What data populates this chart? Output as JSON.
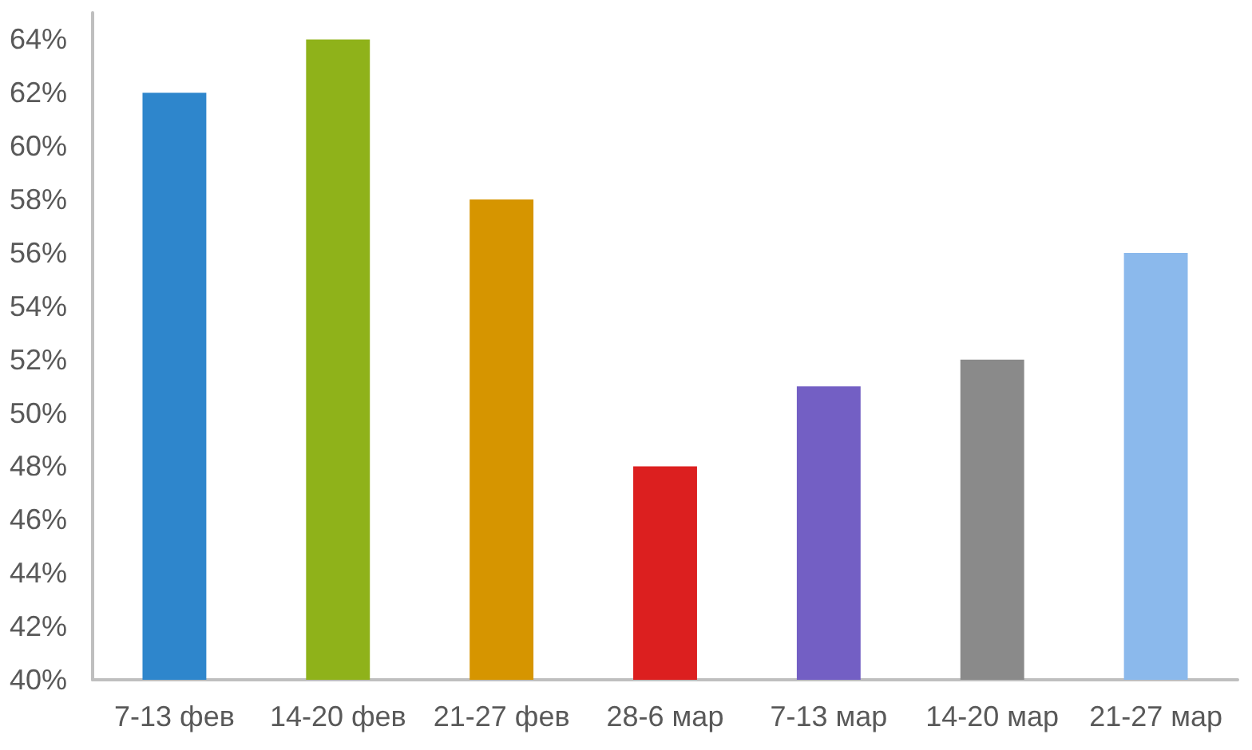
{
  "chart_data": {
    "type": "bar",
    "categories": [
      "7-13 фев",
      "14-20 фев",
      "21-27 фев",
      "28-6 мар",
      "7-13 мар",
      "14-20 мар",
      "21-27 мар"
    ],
    "values": [
      62,
      64,
      58,
      48,
      51,
      52,
      56
    ],
    "colors": [
      "#2e86cc",
      "#8fb21a",
      "#d69500",
      "#dc1f1f",
      "#735fc4",
      "#8a8a8a",
      "#8bb9ec"
    ],
    "ylim": [
      40,
      65
    ],
    "yticks": [
      {
        "value": 40,
        "label": "40%"
      },
      {
        "value": 42,
        "label": "42%"
      },
      {
        "value": 44,
        "label": "44%"
      },
      {
        "value": 46,
        "label": "46%"
      },
      {
        "value": 48,
        "label": "48%"
      },
      {
        "value": 50,
        "label": "50%"
      },
      {
        "value": 52,
        "label": "52%"
      },
      {
        "value": 54,
        "label": "54%"
      },
      {
        "value": 56,
        "label": "56%"
      },
      {
        "value": 58,
        "label": "58%"
      },
      {
        "value": 60,
        "label": "60%"
      },
      {
        "value": 62,
        "label": "62%"
      },
      {
        "value": 64,
        "label": "64%"
      }
    ],
    "grid": false
  }
}
